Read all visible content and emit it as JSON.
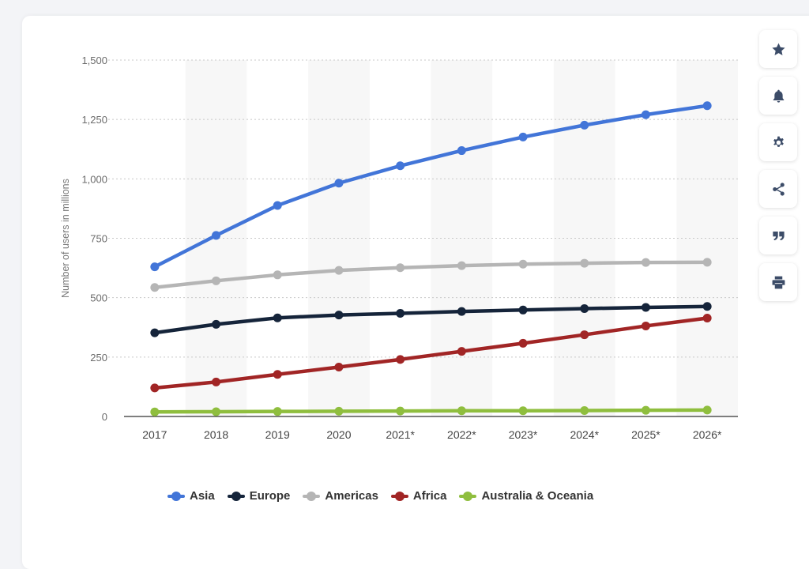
{
  "chart_data": {
    "type": "line",
    "ylabel": "Number of users in millions",
    "xlabel": "",
    "ylim": [
      0,
      1500
    ],
    "yticks": [
      0,
      250,
      500,
      750,
      1000,
      1250,
      1500
    ],
    "ytick_labels": [
      "0",
      "250",
      "500",
      "750",
      "1,000",
      "1,250",
      "1,500"
    ],
    "categories": [
      "2017",
      "2018",
      "2019",
      "2020",
      "2021*",
      "2022*",
      "2023*",
      "2024*",
      "2025*",
      "2026*"
    ],
    "grid": "horizontal dotted, alternating shaded columns",
    "legend_position": "bottom",
    "series": [
      {
        "name": "Asia",
        "color": "#4275d8",
        "values": [
          630,
          762,
          888,
          982,
          1055,
          1119,
          1176,
          1226,
          1270,
          1308
        ]
      },
      {
        "name": "Europe",
        "color": "#15243a",
        "values": [
          352,
          388,
          415,
          427,
          434,
          442,
          448,
          454,
          459,
          463
        ]
      },
      {
        "name": "Americas",
        "color": "#b5b5b5",
        "values": [
          543,
          571,
          596,
          615,
          626,
          635,
          641,
          645,
          648,
          649
        ]
      },
      {
        "name": "Africa",
        "color": "#a12525",
        "values": [
          120,
          145,
          177,
          208,
          240,
          274,
          308,
          344,
          381,
          414
        ]
      },
      {
        "name": "Australia & Oceania",
        "color": "#8fbe3e",
        "values": [
          19,
          20,
          21,
          22,
          23,
          24,
          24,
          25,
          26,
          27
        ]
      }
    ]
  },
  "toolbar": {
    "buttons": [
      {
        "icon": "star-icon",
        "label": "favorite"
      },
      {
        "icon": "bell-icon",
        "label": "notifications"
      },
      {
        "icon": "gear-icon",
        "label": "settings"
      },
      {
        "icon": "share-icon",
        "label": "share"
      },
      {
        "icon": "quote-icon",
        "label": "cite"
      },
      {
        "icon": "print-icon",
        "label": "print"
      }
    ]
  }
}
